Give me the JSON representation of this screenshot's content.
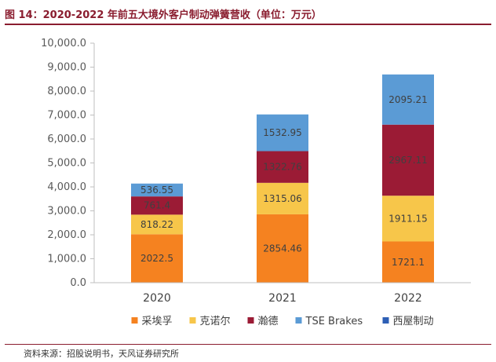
{
  "figure": {
    "title": "图 14：2020-2022 年前五大境外客户制动弹簧营收（单位：万元）",
    "source": "资料来源：招股说明书，天风证券研究所"
  },
  "chart_data": {
    "type": "bar",
    "stacked": true,
    "categories": [
      "2020",
      "2021",
      "2022"
    ],
    "ylim": [
      0,
      10000
    ],
    "ytick_step": 1000,
    "ytick_labels": [
      "0.0",
      "1,000.0",
      "2,000.0",
      "3,000.0",
      "4,000.0",
      "5,000.0",
      "6,000.0",
      "7,000.0",
      "8,000.0",
      "9,000.0",
      "10,000.0"
    ],
    "legend_position": "bottom",
    "grid": false,
    "series": [
      {
        "name": "采埃孚",
        "color": "#f58220",
        "values": [
          2022.5,
          2854.46,
          1721.1
        ],
        "labels": [
          "2022.5",
          "2854.46",
          "1721.1"
        ]
      },
      {
        "name": "克诺尔",
        "color": "#f7c64a",
        "values": [
          818.22,
          1315.06,
          1911.15
        ],
        "labels": [
          "818.22",
          "1315.06",
          "1911.15"
        ]
      },
      {
        "name": "瀚德",
        "color": "#9b1b35",
        "values": [
          761.4,
          1322.76,
          2967.11
        ],
        "labels": [
          "761.4",
          "1322.76",
          "2967.11"
        ]
      },
      {
        "name": "TSE Brakes",
        "color": "#5b9bd5",
        "values": [
          536.55,
          1532.95,
          2095.21
        ],
        "labels": [
          "536.55",
          "1532.95",
          "2095.21"
        ]
      },
      {
        "name": "西屋制动",
        "color": "#2e5fb5",
        "values": [
          0,
          0,
          0
        ],
        "labels": [
          "",
          "",
          ""
        ]
      }
    ]
  }
}
